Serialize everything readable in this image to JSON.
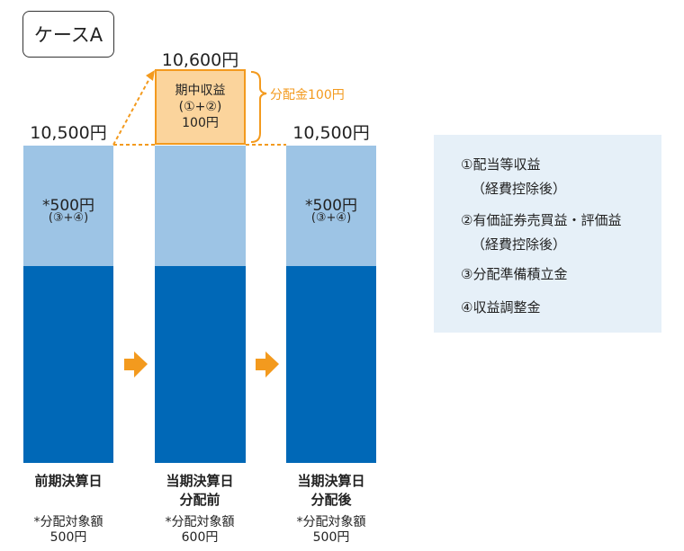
{
  "case_label": "ケースA",
  "columns": [
    {
      "total": "10,500円",
      "top_value": "*500円",
      "top_sub": "(③+④)",
      "label_line1": "前期決算日",
      "label_line2": "",
      "note_line1": "*分配対象額",
      "note_line2": "500円"
    },
    {
      "total": "10,600円",
      "top_value": "",
      "top_sub": "",
      "label_line1": "当期決算日",
      "label_line2": "分配前",
      "note_line1": "*分配対象額",
      "note_line2": "600円"
    },
    {
      "total": "10,500円",
      "top_value": "*500円",
      "top_sub": "(③+④)",
      "label_line1": "当期決算日",
      "label_line2": "分配後",
      "note_line1": "*分配対象額",
      "note_line2": "500円"
    }
  ],
  "income_box": {
    "line1": "期中収益",
    "line2": "(①+②)",
    "line3": "100円"
  },
  "distribution_label": "分配金100円",
  "legend": {
    "items": [
      {
        "text": "①配当等収益",
        "sub": "（経費控除後）"
      },
      {
        "text": "②有価証券売買益・評価益",
        "sub": "（経費控除後）"
      },
      {
        "text": "③分配準備積立金",
        "sub": ""
      },
      {
        "text": "④収益調整金",
        "sub": ""
      }
    ]
  },
  "colors": {
    "dark_blue": "#0068b7",
    "light_blue": "#9dc4e5",
    "orange": "#f39a1e",
    "light_orange": "#fbd49c",
    "legend_bg": "#e6f0f8"
  }
}
